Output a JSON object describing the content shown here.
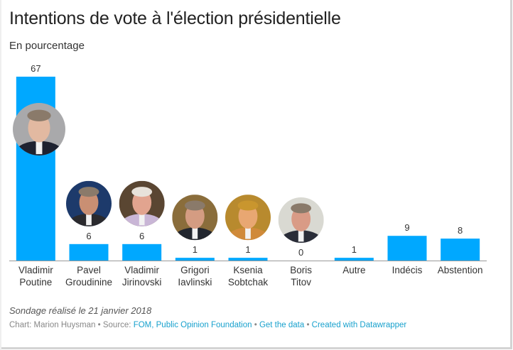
{
  "chart_data": {
    "type": "bar",
    "title": "Intentions de vote à l'élection présidentielle",
    "subtitle": "En pourcentage",
    "xlabel": "",
    "ylabel": "",
    "ylim": [
      0,
      67
    ],
    "grid": false,
    "categories": [
      [
        "Vladimir",
        "Poutine"
      ],
      [
        "Pavel",
        "Groudinine"
      ],
      [
        "Vladimir",
        "Jirinovski"
      ],
      [
        "Grigori",
        "Iavlinski"
      ],
      [
        "Ksenia",
        "Sobtchak"
      ],
      [
        "Boris",
        "Titov"
      ],
      [
        "Autre"
      ],
      [
        "Indécis"
      ],
      [
        "Abstention"
      ]
    ],
    "values": [
      67,
      6,
      6,
      1,
      1,
      0,
      1,
      9,
      8
    ],
    "bar_color": "#00a8ff",
    "photos": [
      {
        "candidate": "Vladimir Poutine",
        "bg": "#a9a9ab",
        "face": "#e2b9a1",
        "suit": "#1e2230"
      },
      {
        "candidate": "Pavel Groudinine",
        "bg": "#1d3a6b",
        "face": "#c98f73",
        "suit": "#2a2a2e"
      },
      {
        "candidate": "Vladimir Jirinovski",
        "bg": "#5a4632",
        "face": "#e2a48f",
        "suit": "#c9b6d6"
      },
      {
        "candidate": "Grigori Iavlinski",
        "bg": "#8a6d3b",
        "face": "#d49c82",
        "suit": "#22262e"
      },
      {
        "candidate": "Ksenia Sobtchak",
        "bg": "#b88a2e",
        "face": "#e8a772",
        "suit": "#d08a3a"
      },
      {
        "candidate": "Boris Titov",
        "bg": "#d9d9d2",
        "face": "#d99b86",
        "suit": "#2a2d38"
      }
    ]
  },
  "note": "Sondage réalisé le 21 janvier 2018",
  "credits": {
    "chart_label": "Chart: Marion Huysman",
    "sep": " • ",
    "source_label": "Source: ",
    "source_link": "FOM, Public Opinion Foundation",
    "get_data": "Get the data",
    "created_with": "Created with Datawrapper"
  }
}
